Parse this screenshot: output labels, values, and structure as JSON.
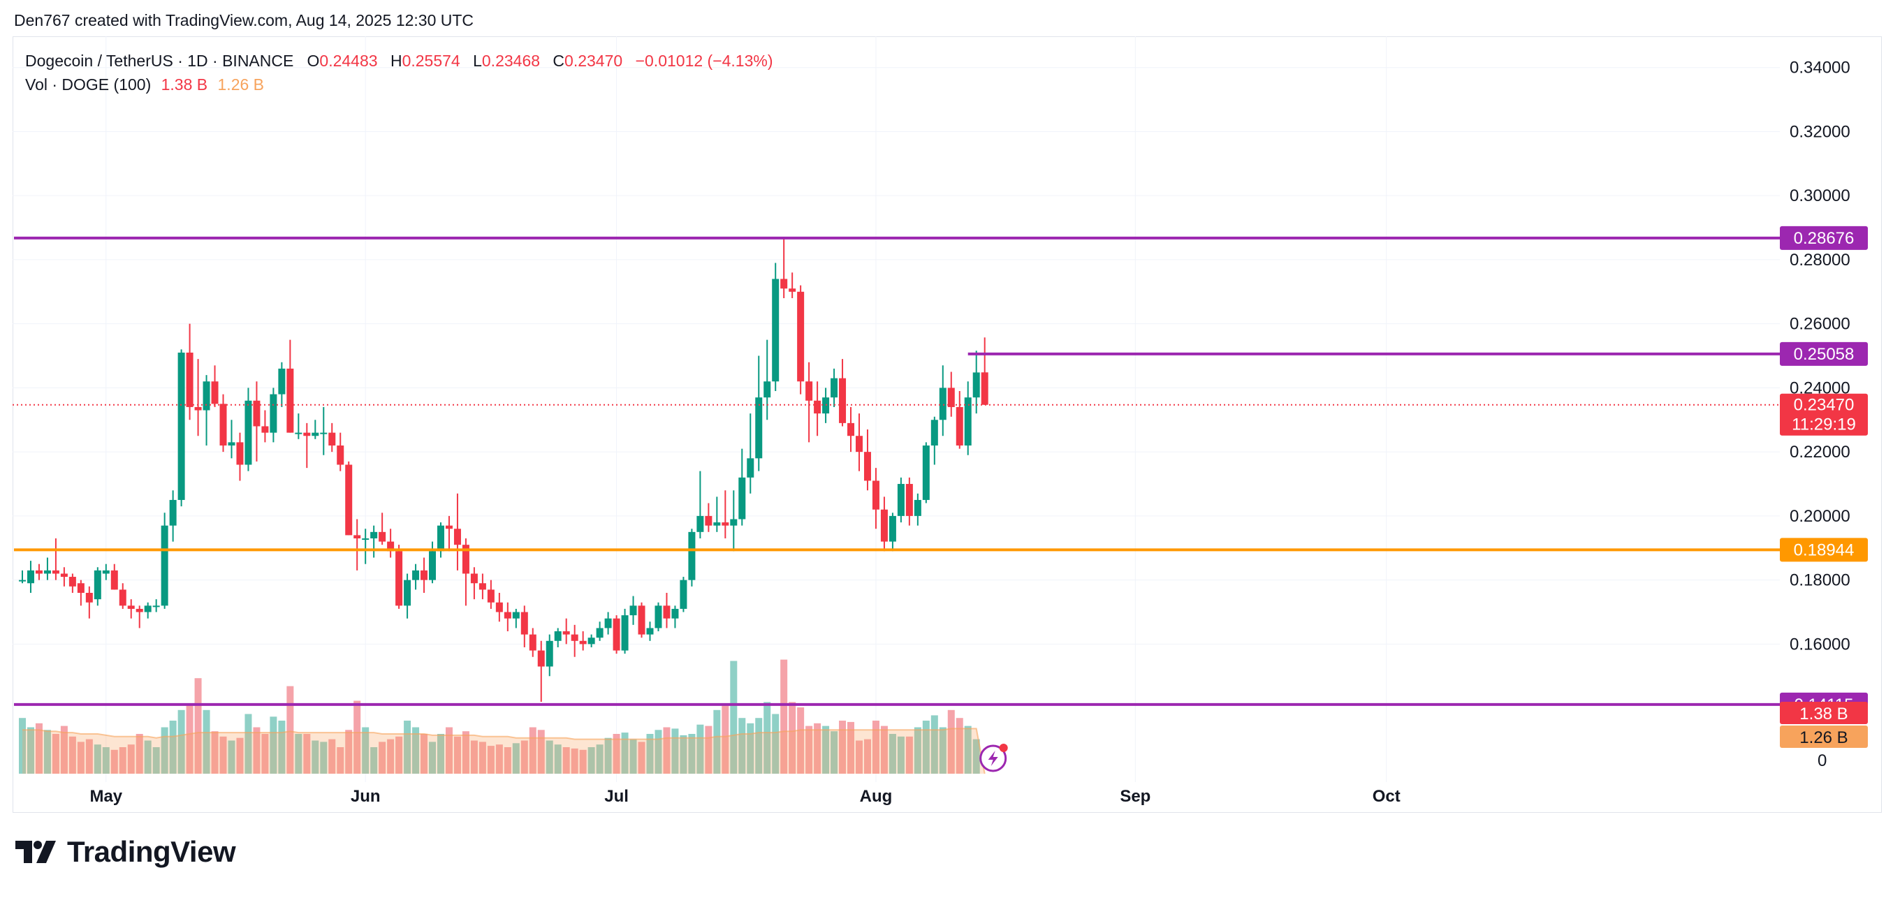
{
  "header": {
    "credit": "Den767 created with TradingView.com, Aug 14, 2025 12:30 UTC"
  },
  "legend": {
    "symbol": "Dogecoin / TetherUS · 1D · BINANCE",
    "o_label": "O",
    "o_value": "0.24483",
    "h_label": "H",
    "h_value": "0.25574",
    "l_label": "L",
    "l_value": "0.23468",
    "c_label": "C",
    "c_value": "0.23470",
    "change": "−0.01012 (−4.13%)",
    "vol_label": "Vol · DOGE (100)",
    "vol_value": "1.38 B",
    "vol_ma_value": "1.26 B"
  },
  "brand": {
    "name": "TradingView"
  },
  "colors": {
    "up": "#089981",
    "down": "#f23645",
    "vol_up": "#8fd0c6",
    "vol_down": "#f5a3a9",
    "vol_ma": "#f7a35c",
    "level_purple": "#9c27b0",
    "level_orange": "#ff9800",
    "grid": "#f0f3fa",
    "axis_text": "#131722"
  },
  "chart_data": {
    "type": "candlestick",
    "title": "Dogecoin / TetherUS · 1D · BINANCE",
    "x_ticks": [
      {
        "label": "May",
        "date": "2025-05-01"
      },
      {
        "label": "Jun",
        "date": "2025-06-01"
      },
      {
        "label": "Jul",
        "date": "2025-07-01"
      },
      {
        "label": "Aug",
        "date": "2025-08-01"
      },
      {
        "label": "Sep",
        "date": "2025-09-01"
      },
      {
        "label": "Oct",
        "date": "2025-10-01"
      }
    ],
    "x_range": [
      "2025-04-21",
      "2025-10-14"
    ],
    "y_range": [
      0.13,
      0.348
    ],
    "y_ticks": [
      "0.34000",
      "0.32000",
      "0.30000",
      "0.28000",
      "0.26000",
      "0.24000",
      "0.22000",
      "0.20000",
      "0.18000",
      "0.16000"
    ],
    "volume_axis_label": "0",
    "candles": [
      {
        "date": "2025-04-21",
        "o": 0.18,
        "h": 0.183,
        "l": 0.179,
        "c": 0.18
      },
      {
        "date": "2025-04-22",
        "o": 0.179,
        "h": 0.186,
        "l": 0.176,
        "c": 0.183
      },
      {
        "date": "2025-04-23",
        "o": 0.183,
        "h": 0.185,
        "l": 0.18,
        "c": 0.182
      },
      {
        "date": "2025-04-24",
        "o": 0.182,
        "h": 0.187,
        "l": 0.18,
        "c": 0.183
      },
      {
        "date": "2025-04-25",
        "o": 0.183,
        "h": 0.193,
        "l": 0.18,
        "c": 0.182
      },
      {
        "date": "2025-04-26",
        "o": 0.182,
        "h": 0.184,
        "l": 0.178,
        "c": 0.181
      },
      {
        "date": "2025-04-27",
        "o": 0.181,
        "h": 0.182,
        "l": 0.176,
        "c": 0.178
      },
      {
        "date": "2025-04-28",
        "o": 0.179,
        "h": 0.18,
        "l": 0.172,
        "c": 0.176
      },
      {
        "date": "2025-04-29",
        "o": 0.176,
        "h": 0.178,
        "l": 0.168,
        "c": 0.173
      },
      {
        "date": "2025-04-30",
        "o": 0.174,
        "h": 0.184,
        "l": 0.172,
        "c": 0.183
      },
      {
        "date": "2025-05-01",
        "o": 0.182,
        "h": 0.185,
        "l": 0.18,
        "c": 0.183
      },
      {
        "date": "2025-05-02",
        "o": 0.183,
        "h": 0.185,
        "l": 0.177,
        "c": 0.177
      },
      {
        "date": "2025-05-03",
        "o": 0.177,
        "h": 0.179,
        "l": 0.171,
        "c": 0.172
      },
      {
        "date": "2025-05-04",
        "o": 0.172,
        "h": 0.174,
        "l": 0.168,
        "c": 0.171
      },
      {
        "date": "2025-05-05",
        "o": 0.171,
        "h": 0.172,
        "l": 0.165,
        "c": 0.17
      },
      {
        "date": "2025-05-06",
        "o": 0.17,
        "h": 0.173,
        "l": 0.168,
        "c": 0.172
      },
      {
        "date": "2025-05-07",
        "o": 0.172,
        "h": 0.174,
        "l": 0.17,
        "c": 0.172
      },
      {
        "date": "2025-05-08",
        "o": 0.172,
        "h": 0.201,
        "l": 0.171,
        "c": 0.197
      },
      {
        "date": "2025-05-09",
        "o": 0.197,
        "h": 0.208,
        "l": 0.192,
        "c": 0.205
      },
      {
        "date": "2025-05-10",
        "o": 0.205,
        "h": 0.252,
        "l": 0.203,
        "c": 0.251
      },
      {
        "date": "2025-05-11",
        "o": 0.251,
        "h": 0.26,
        "l": 0.23,
        "c": 0.234
      },
      {
        "date": "2025-05-12",
        "o": 0.234,
        "h": 0.249,
        "l": 0.225,
        "c": 0.233
      },
      {
        "date": "2025-05-13",
        "o": 0.233,
        "h": 0.244,
        "l": 0.222,
        "c": 0.242
      },
      {
        "date": "2025-05-14",
        "o": 0.242,
        "h": 0.247,
        "l": 0.234,
        "c": 0.235
      },
      {
        "date": "2025-05-15",
        "o": 0.235,
        "h": 0.238,
        "l": 0.22,
        "c": 0.222
      },
      {
        "date": "2025-05-16",
        "o": 0.222,
        "h": 0.23,
        "l": 0.218,
        "c": 0.223
      },
      {
        "date": "2025-05-17",
        "o": 0.223,
        "h": 0.226,
        "l": 0.211,
        "c": 0.216
      },
      {
        "date": "2025-05-18",
        "o": 0.216,
        "h": 0.24,
        "l": 0.214,
        "c": 0.236
      },
      {
        "date": "2025-05-19",
        "o": 0.236,
        "h": 0.242,
        "l": 0.217,
        "c": 0.228
      },
      {
        "date": "2025-05-20",
        "o": 0.228,
        "h": 0.233,
        "l": 0.223,
        "c": 0.226
      },
      {
        "date": "2025-05-21",
        "o": 0.226,
        "h": 0.24,
        "l": 0.223,
        "c": 0.238
      },
      {
        "date": "2025-05-22",
        "o": 0.238,
        "h": 0.248,
        "l": 0.234,
        "c": 0.246
      },
      {
        "date": "2025-05-23",
        "o": 0.246,
        "h": 0.255,
        "l": 0.226,
        "c": 0.226
      },
      {
        "date": "2025-05-24",
        "o": 0.226,
        "h": 0.232,
        "l": 0.224,
        "c": 0.226
      },
      {
        "date": "2025-05-25",
        "o": 0.226,
        "h": 0.229,
        "l": 0.215,
        "c": 0.225
      },
      {
        "date": "2025-05-26",
        "o": 0.225,
        "h": 0.23,
        "l": 0.224,
        "c": 0.226
      },
      {
        "date": "2025-05-27",
        "o": 0.226,
        "h": 0.234,
        "l": 0.219,
        "c": 0.226
      },
      {
        "date": "2025-05-28",
        "o": 0.226,
        "h": 0.229,
        "l": 0.22,
        "c": 0.222
      },
      {
        "date": "2025-05-29",
        "o": 0.222,
        "h": 0.226,
        "l": 0.214,
        "c": 0.216
      },
      {
        "date": "2025-05-30",
        "o": 0.216,
        "h": 0.217,
        "l": 0.194,
        "c": 0.194
      },
      {
        "date": "2025-05-31",
        "o": 0.194,
        "h": 0.199,
        "l": 0.183,
        "c": 0.193
      },
      {
        "date": "2025-06-01",
        "o": 0.193,
        "h": 0.196,
        "l": 0.185,
        "c": 0.193
      },
      {
        "date": "2025-06-02",
        "o": 0.193,
        "h": 0.197,
        "l": 0.187,
        "c": 0.195
      },
      {
        "date": "2025-06-03",
        "o": 0.195,
        "h": 0.201,
        "l": 0.191,
        "c": 0.192
      },
      {
        "date": "2025-06-04",
        "o": 0.192,
        "h": 0.196,
        "l": 0.187,
        "c": 0.189
      },
      {
        "date": "2025-06-05",
        "o": 0.189,
        "h": 0.191,
        "l": 0.171,
        "c": 0.172
      },
      {
        "date": "2025-06-06",
        "o": 0.172,
        "h": 0.182,
        "l": 0.168,
        "c": 0.18
      },
      {
        "date": "2025-06-07",
        "o": 0.18,
        "h": 0.185,
        "l": 0.177,
        "c": 0.183
      },
      {
        "date": "2025-06-08",
        "o": 0.183,
        "h": 0.187,
        "l": 0.176,
        "c": 0.18
      },
      {
        "date": "2025-06-09",
        "o": 0.18,
        "h": 0.192,
        "l": 0.179,
        "c": 0.189
      },
      {
        "date": "2025-06-10",
        "o": 0.189,
        "h": 0.198,
        "l": 0.187,
        "c": 0.197
      },
      {
        "date": "2025-06-11",
        "o": 0.197,
        "h": 0.2,
        "l": 0.189,
        "c": 0.196
      },
      {
        "date": "2025-06-12",
        "o": 0.196,
        "h": 0.207,
        "l": 0.183,
        "c": 0.191
      },
      {
        "date": "2025-06-13",
        "o": 0.191,
        "h": 0.193,
        "l": 0.172,
        "c": 0.182
      },
      {
        "date": "2025-06-14",
        "o": 0.182,
        "h": 0.184,
        "l": 0.174,
        "c": 0.179
      },
      {
        "date": "2025-06-15",
        "o": 0.179,
        "h": 0.182,
        "l": 0.174,
        "c": 0.177
      },
      {
        "date": "2025-06-16",
        "o": 0.177,
        "h": 0.18,
        "l": 0.171,
        "c": 0.173
      },
      {
        "date": "2025-06-17",
        "o": 0.173,
        "h": 0.176,
        "l": 0.167,
        "c": 0.17
      },
      {
        "date": "2025-06-18",
        "o": 0.17,
        "h": 0.173,
        "l": 0.164,
        "c": 0.168
      },
      {
        "date": "2025-06-19",
        "o": 0.168,
        "h": 0.171,
        "l": 0.165,
        "c": 0.17
      },
      {
        "date": "2025-06-20",
        "o": 0.17,
        "h": 0.172,
        "l": 0.159,
        "c": 0.163
      },
      {
        "date": "2025-06-21",
        "o": 0.163,
        "h": 0.165,
        "l": 0.156,
        "c": 0.158
      },
      {
        "date": "2025-06-22",
        "o": 0.158,
        "h": 0.161,
        "l": 0.142,
        "c": 0.153
      },
      {
        "date": "2025-06-23",
        "o": 0.153,
        "h": 0.163,
        "l": 0.15,
        "c": 0.161
      },
      {
        "date": "2025-06-24",
        "o": 0.161,
        "h": 0.165,
        "l": 0.159,
        "c": 0.164
      },
      {
        "date": "2025-06-25",
        "o": 0.164,
        "h": 0.168,
        "l": 0.16,
        "c": 0.163
      },
      {
        "date": "2025-06-26",
        "o": 0.163,
        "h": 0.166,
        "l": 0.156,
        "c": 0.161
      },
      {
        "date": "2025-06-27",
        "o": 0.161,
        "h": 0.164,
        "l": 0.158,
        "c": 0.16
      },
      {
        "date": "2025-06-28",
        "o": 0.16,
        "h": 0.163,
        "l": 0.159,
        "c": 0.162
      },
      {
        "date": "2025-06-29",
        "o": 0.162,
        "h": 0.167,
        "l": 0.161,
        "c": 0.165
      },
      {
        "date": "2025-06-30",
        "o": 0.165,
        "h": 0.17,
        "l": 0.163,
        "c": 0.168
      },
      {
        "date": "2025-07-01",
        "o": 0.168,
        "h": 0.169,
        "l": 0.157,
        "c": 0.158
      },
      {
        "date": "2025-07-02",
        "o": 0.158,
        "h": 0.171,
        "l": 0.157,
        "c": 0.169
      },
      {
        "date": "2025-07-03",
        "o": 0.169,
        "h": 0.175,
        "l": 0.166,
        "c": 0.172
      },
      {
        "date": "2025-07-04",
        "o": 0.172,
        "h": 0.173,
        "l": 0.162,
        "c": 0.163
      },
      {
        "date": "2025-07-05",
        "o": 0.163,
        "h": 0.167,
        "l": 0.161,
        "c": 0.165
      },
      {
        "date": "2025-07-06",
        "o": 0.165,
        "h": 0.173,
        "l": 0.164,
        "c": 0.172
      },
      {
        "date": "2025-07-07",
        "o": 0.172,
        "h": 0.176,
        "l": 0.165,
        "c": 0.168
      },
      {
        "date": "2025-07-08",
        "o": 0.168,
        "h": 0.172,
        "l": 0.165,
        "c": 0.171
      },
      {
        "date": "2025-07-09",
        "o": 0.171,
        "h": 0.181,
        "l": 0.17,
        "c": 0.18
      },
      {
        "date": "2025-07-10",
        "o": 0.18,
        "h": 0.196,
        "l": 0.178,
        "c": 0.195
      },
      {
        "date": "2025-07-11",
        "o": 0.195,
        "h": 0.214,
        "l": 0.193,
        "c": 0.2
      },
      {
        "date": "2025-07-12",
        "o": 0.2,
        "h": 0.204,
        "l": 0.195,
        "c": 0.197
      },
      {
        "date": "2025-07-13",
        "o": 0.197,
        "h": 0.206,
        "l": 0.195,
        "c": 0.198
      },
      {
        "date": "2025-07-14",
        "o": 0.198,
        "h": 0.208,
        "l": 0.193,
        "c": 0.197
      },
      {
        "date": "2025-07-15",
        "o": 0.197,
        "h": 0.208,
        "l": 0.189,
        "c": 0.199
      },
      {
        "date": "2025-07-16",
        "o": 0.199,
        "h": 0.221,
        "l": 0.197,
        "c": 0.212
      },
      {
        "date": "2025-07-17",
        "o": 0.212,
        "h": 0.232,
        "l": 0.207,
        "c": 0.218
      },
      {
        "date": "2025-07-18",
        "o": 0.218,
        "h": 0.25,
        "l": 0.214,
        "c": 0.237
      },
      {
        "date": "2025-07-19",
        "o": 0.237,
        "h": 0.255,
        "l": 0.23,
        "c": 0.242
      },
      {
        "date": "2025-07-20",
        "o": 0.242,
        "h": 0.279,
        "l": 0.239,
        "c": 0.274
      },
      {
        "date": "2025-07-21",
        "o": 0.274,
        "h": 0.2868,
        "l": 0.268,
        "c": 0.271
      },
      {
        "date": "2025-07-22",
        "o": 0.271,
        "h": 0.276,
        "l": 0.268,
        "c": 0.27
      },
      {
        "date": "2025-07-23",
        "o": 0.27,
        "h": 0.272,
        "l": 0.238,
        "c": 0.242
      },
      {
        "date": "2025-07-24",
        "o": 0.242,
        "h": 0.248,
        "l": 0.223,
        "c": 0.236
      },
      {
        "date": "2025-07-25",
        "o": 0.236,
        "h": 0.242,
        "l": 0.225,
        "c": 0.232
      },
      {
        "date": "2025-07-26",
        "o": 0.232,
        "h": 0.24,
        "l": 0.229,
        "c": 0.237
      },
      {
        "date": "2025-07-27",
        "o": 0.237,
        "h": 0.246,
        "l": 0.234,
        "c": 0.243
      },
      {
        "date": "2025-07-28",
        "o": 0.243,
        "h": 0.249,
        "l": 0.228,
        "c": 0.229
      },
      {
        "date": "2025-07-29",
        "o": 0.229,
        "h": 0.234,
        "l": 0.22,
        "c": 0.225
      },
      {
        "date": "2025-07-30",
        "o": 0.225,
        "h": 0.232,
        "l": 0.214,
        "c": 0.22
      },
      {
        "date": "2025-07-31",
        "o": 0.22,
        "h": 0.227,
        "l": 0.208,
        "c": 0.211
      },
      {
        "date": "2025-08-01",
        "o": 0.211,
        "h": 0.215,
        "l": 0.196,
        "c": 0.202
      },
      {
        "date": "2025-08-02",
        "o": 0.202,
        "h": 0.206,
        "l": 0.189,
        "c": 0.192
      },
      {
        "date": "2025-08-03",
        "o": 0.192,
        "h": 0.201,
        "l": 0.189,
        "c": 0.2
      },
      {
        "date": "2025-08-04",
        "o": 0.2,
        "h": 0.212,
        "l": 0.198,
        "c": 0.21
      },
      {
        "date": "2025-08-05",
        "o": 0.21,
        "h": 0.212,
        "l": 0.197,
        "c": 0.2
      },
      {
        "date": "2025-08-06",
        "o": 0.2,
        "h": 0.207,
        "l": 0.197,
        "c": 0.205
      },
      {
        "date": "2025-08-07",
        "o": 0.205,
        "h": 0.223,
        "l": 0.204,
        "c": 0.222
      },
      {
        "date": "2025-08-08",
        "o": 0.222,
        "h": 0.231,
        "l": 0.216,
        "c": 0.23
      },
      {
        "date": "2025-08-09",
        "o": 0.23,
        "h": 0.247,
        "l": 0.225,
        "c": 0.24
      },
      {
        "date": "2025-08-10",
        "o": 0.24,
        "h": 0.245,
        "l": 0.231,
        "c": 0.234
      },
      {
        "date": "2025-08-11",
        "o": 0.234,
        "h": 0.239,
        "l": 0.221,
        "c": 0.222
      },
      {
        "date": "2025-08-12",
        "o": 0.222,
        "h": 0.242,
        "l": 0.219,
        "c": 0.237
      },
      {
        "date": "2025-08-13",
        "o": 0.237,
        "h": 0.2516,
        "l": 0.232,
        "c": 0.2448
      },
      {
        "date": "2025-08-14",
        "o": 0.24483,
        "h": 0.25574,
        "l": 0.23468,
        "c": 0.2347
      }
    ],
    "volume": [
      42,
      35,
      38,
      33,
      30,
      36,
      28,
      24,
      26,
      22,
      20,
      18,
      20,
      22,
      30,
      25,
      20,
      35,
      40,
      48,
      52,
      72,
      48,
      32,
      28,
      25,
      27,
      45,
      35,
      30,
      43,
      40,
      66,
      30,
      30,
      25,
      24,
      26,
      20,
      33,
      55,
      35,
      20,
      24,
      26,
      28,
      40,
      35,
      30,
      24,
      30,
      35,
      28,
      32,
      25,
      24,
      21,
      22,
      20,
      23,
      25,
      35,
      33,
      25,
      22,
      20,
      19,
      18,
      20,
      22,
      27,
      30,
      31,
      26,
      24,
      30,
      33,
      35,
      34,
      29,
      30,
      37,
      36,
      48,
      52,
      85,
      42,
      38,
      42,
      54,
      45,
      86,
      54,
      50,
      36,
      38,
      36,
      32,
      40,
      39,
      25,
      26,
      40,
      36,
      30,
      28,
      28,
      35,
      40,
      44,
      35,
      48,
      42,
      36,
      26
    ],
    "volume_ma": [
      33,
      33,
      33,
      32,
      32,
      31,
      31,
      30,
      30,
      30,
      29,
      28,
      28,
      28,
      28,
      28,
      27,
      28,
      28,
      29,
      30,
      31,
      31,
      31,
      31,
      31,
      31,
      31,
      31,
      31,
      31,
      31,
      32,
      31,
      31,
      31,
      31,
      31,
      31,
      31,
      31,
      31,
      31,
      30,
      30,
      30,
      30,
      30,
      30,
      29,
      29,
      29,
      29,
      29,
      29,
      28,
      28,
      28,
      28,
      27,
      27,
      27,
      27,
      27,
      27,
      27,
      26,
      26,
      26,
      26,
      26,
      26,
      26,
      26,
      26,
      26,
      26,
      27,
      27,
      27,
      27,
      27,
      27,
      28,
      28,
      29,
      30,
      30,
      31,
      31,
      31,
      32,
      32,
      33,
      33,
      33,
      33,
      33,
      33,
      33,
      33,
      33,
      33,
      33,
      33,
      33,
      33,
      33,
      33,
      33,
      33,
      34,
      34,
      34,
      34
    ],
    "levels": [
      {
        "value": 0.28676,
        "label": "0.28676",
        "color": "purple",
        "start_date": "2025-04-21"
      },
      {
        "value": 0.25058,
        "label": "0.25058",
        "color": "purple",
        "start_date": "2025-08-13"
      },
      {
        "value": 0.18944,
        "label": "0.18944",
        "color": "orange",
        "start_date": "2025-04-21"
      },
      {
        "value": 0.14115,
        "label": "0.14115",
        "color": "purple",
        "start_date": "2025-04-21"
      }
    ],
    "last_price": {
      "value": 0.2347,
      "label": "0.23470",
      "countdown": "11:29:19"
    },
    "volume_labels": {
      "vol": "1.38 B",
      "ma": "1.26 B"
    }
  }
}
